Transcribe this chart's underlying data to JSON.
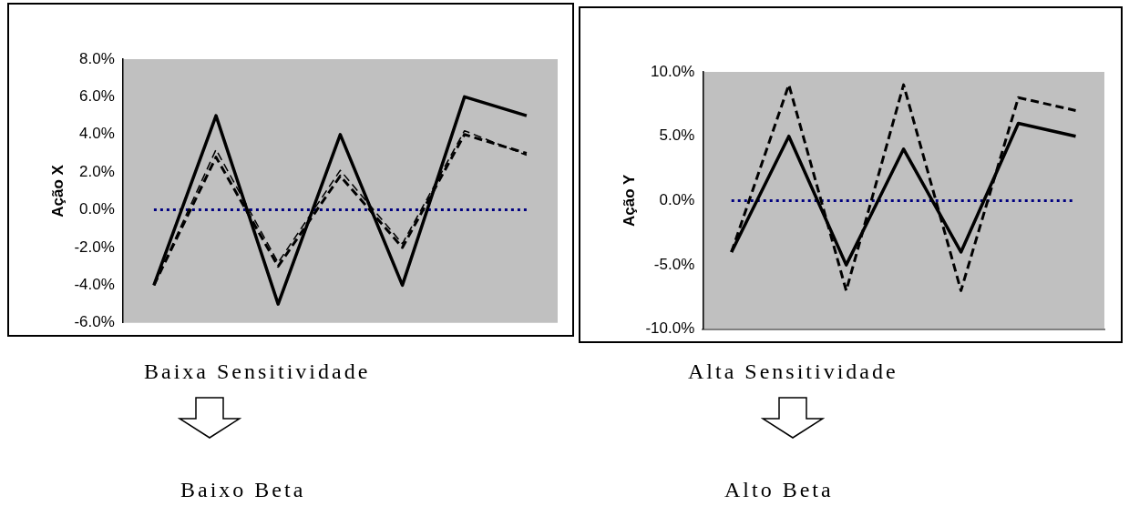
{
  "chart_data": [
    {
      "type": "line",
      "ylabel": "Ação X",
      "categories": [
        null,
        null,
        null,
        null,
        null,
        null,
        null
      ],
      "series": [
        {
          "color": "#000000",
          "line_style": "solid",
          "values": [
            -4,
            5,
            -5,
            4,
            -4,
            6,
            5
          ]
        },
        {
          "color": "#000000",
          "line_style": "dashed",
          "values": [
            -4,
            2.8,
            -3,
            1.8,
            -2,
            4,
            3
          ]
        },
        {
          "color": "#000000",
          "line_style": "dashed",
          "values": [
            -4,
            3.2,
            -2.8,
            2.1,
            -1.8,
            4.2,
            2.9
          ]
        }
      ],
      "ylim": [
        -6,
        8
      ],
      "yticks": [
        {
          "value": -6,
          "label": "-6.0%"
        },
        {
          "value": -4,
          "label": "-4.0%"
        },
        {
          "value": -2,
          "label": "-2.0%"
        },
        {
          "value": 0,
          "label": "0.0%"
        },
        {
          "value": 2,
          "label": "2.0%"
        },
        {
          "value": 4,
          "label": "4.0%"
        },
        {
          "value": 6,
          "label": "6.0%"
        },
        {
          "value": 8,
          "label": "8.0%"
        }
      ],
      "ref_lines": [
        {
          "axis": "y",
          "value": 0,
          "color": "#000080",
          "line_style": "dotted"
        }
      ],
      "annotations": [
        "Baixa Sensitividade",
        "Baixo Beta"
      ],
      "grid": false,
      "legend": false,
      "marker": "none",
      "tick_labels": "y"
    },
    {
      "type": "line",
      "ylabel": "Ação Y",
      "categories": [
        null,
        null,
        null,
        null,
        null,
        null,
        null
      ],
      "series": [
        {
          "color": "#000000",
          "line_style": "solid",
          "values": [
            -4,
            5,
            -5,
            4,
            -4,
            6,
            5
          ]
        },
        {
          "color": "#000000",
          "line_style": "dashed",
          "values": [
            -4,
            9,
            -7,
            9,
            -7,
            8,
            7
          ]
        }
      ],
      "ylim": [
        -10,
        10
      ],
      "yticks": [
        {
          "value": -10,
          "label": "-10.0%"
        },
        {
          "value": -5,
          "label": "-5.0%"
        },
        {
          "value": 0,
          "label": "0.0%"
        },
        {
          "value": 5,
          "label": "5.0%"
        },
        {
          "value": 10,
          "label": "10.0%"
        }
      ],
      "ref_lines": [
        {
          "axis": "y",
          "value": 0,
          "color": "#000080",
          "line_style": "dotted"
        }
      ],
      "annotations": [
        "Alta Sensitividade",
        "Alto Beta"
      ],
      "grid": false,
      "legend": false,
      "marker": "none",
      "tick_labels": "y"
    }
  ]
}
